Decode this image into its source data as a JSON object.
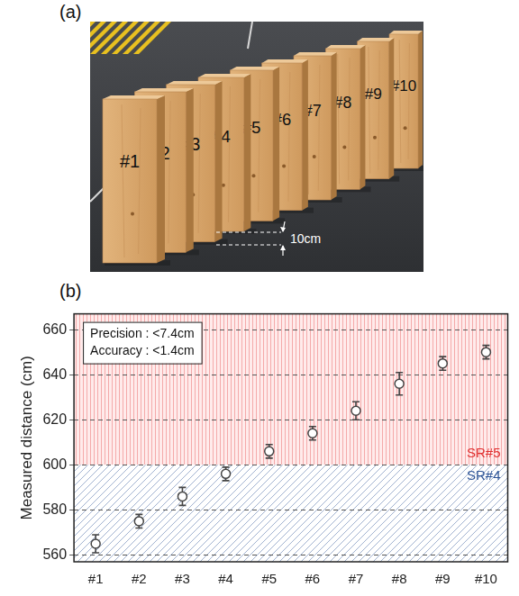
{
  "photo_panel": {
    "letter": "(a)",
    "block_labels": [
      "#1",
      "#2",
      "#3",
      "#4",
      "#5",
      "#6",
      "#7",
      "#8",
      "#9",
      "#10"
    ],
    "spacing_label": "10cm"
  },
  "chart_data": {
    "letter": "(b)",
    "type": "scatter",
    "categories": [
      "#1",
      "#2",
      "#3",
      "#4",
      "#5",
      "#6",
      "#7",
      "#8",
      "#9",
      "#10"
    ],
    "values": [
      565,
      575,
      586,
      596,
      606,
      614,
      624,
      636,
      645,
      650
    ],
    "errors": [
      4,
      3,
      4,
      3,
      3,
      3,
      4,
      5,
      3,
      3
    ],
    "color": "#444444",
    "marker": "circle",
    "ylabel": "Measured distance (cm)",
    "ylim": [
      557,
      667
    ],
    "yticks": [
      560,
      580,
      600,
      620,
      640,
      660
    ],
    "grid": true,
    "annotation": [
      "Precision : <7.4cm",
      "Accuracy : <1.4cm"
    ],
    "regions": [
      {
        "label": "SR#5",
        "from": 600,
        "to": 667,
        "color": "#e03030",
        "line_style": "vertical"
      },
      {
        "label": "SR#4",
        "from": 557,
        "to": 600,
        "color": "#2f5597",
        "line_style": "diagonal"
      }
    ]
  }
}
